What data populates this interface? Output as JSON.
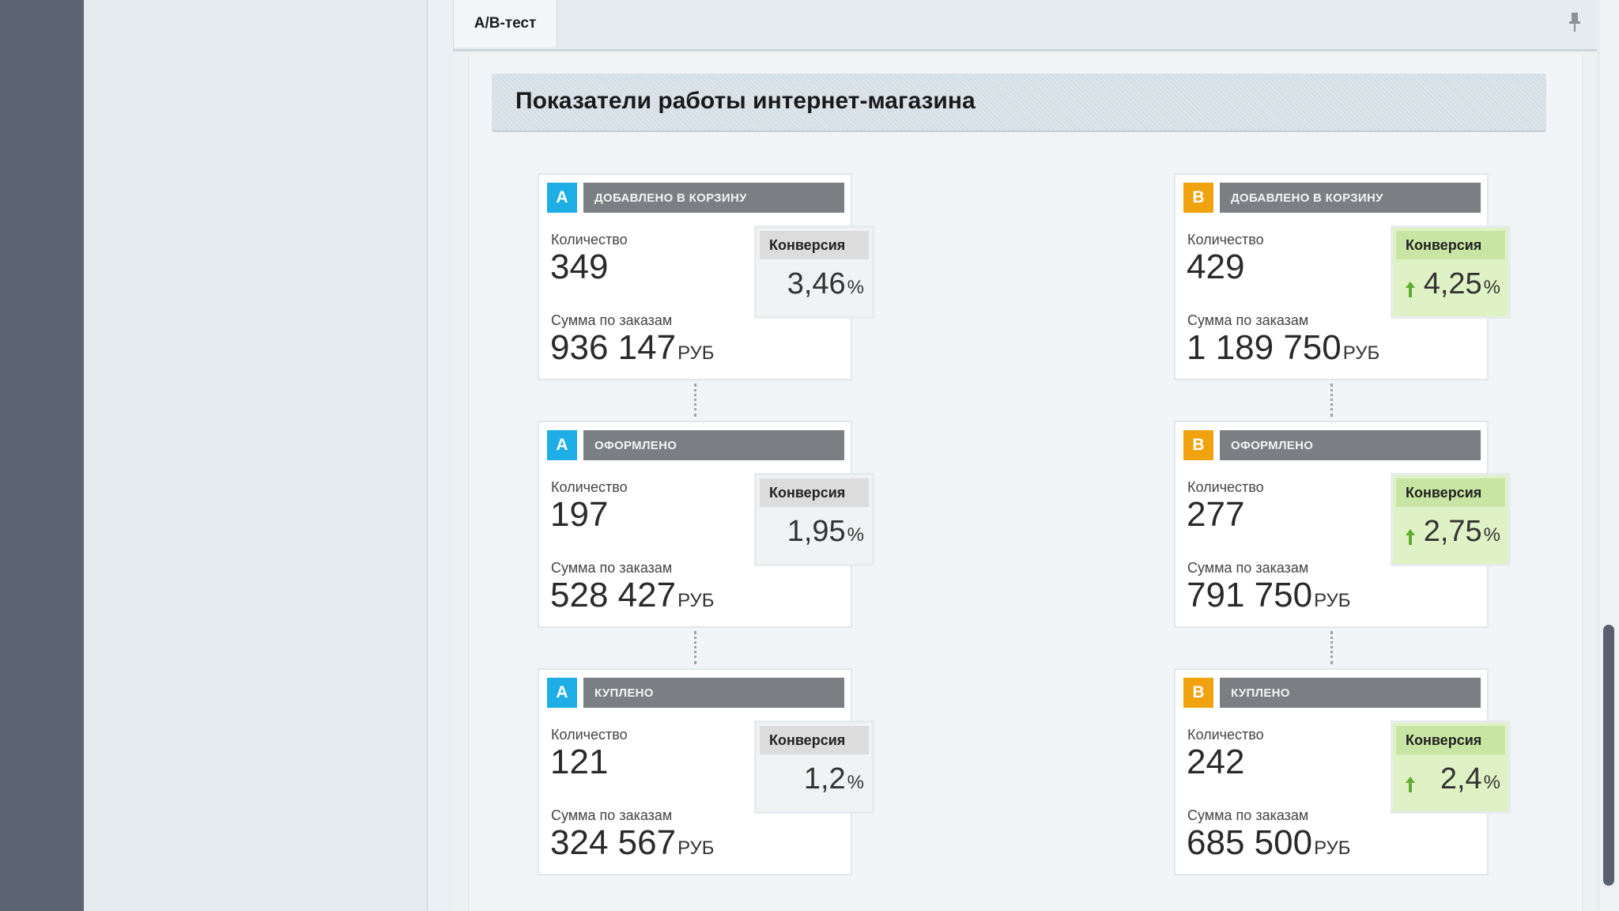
{
  "tab": {
    "label": "A/B-тест"
  },
  "page": {
    "title": "Показатели работы интернет-магазина"
  },
  "labels": {
    "quantity": "Количество",
    "order_sum": "Сумма по заказам",
    "conversion": "Конверсия",
    "currency": "РУБ",
    "percent": "%"
  },
  "variants": [
    {
      "name": "A",
      "color": "#1eaee5",
      "stages": [
        {
          "stage": "ДОБАВЛЕНО В КОРЗИНУ",
          "quantity": "349",
          "sum": "936 147",
          "conversion": "3,46"
        },
        {
          "stage": "ОФОРМЛЕНО",
          "quantity": "197",
          "sum": "528 427",
          "conversion": "1,95"
        },
        {
          "stage": "КУПЛЕНО",
          "quantity": "121",
          "sum": "324 567",
          "conversion": "1,2"
        }
      ]
    },
    {
      "name": "B",
      "color": "#f1a20f",
      "stages": [
        {
          "stage": "ДОБАВЛЕНО В КОРЗИНУ",
          "quantity": "429",
          "sum": "1 189 750",
          "conversion": "4,25",
          "trend": "up"
        },
        {
          "stage": "ОФОРМЛЕНО",
          "quantity": "277",
          "sum": "791 750",
          "conversion": "2,75",
          "trend": "up"
        },
        {
          "stage": "КУПЛЕНО",
          "quantity": "242",
          "sum": "685 500",
          "conversion": "2,4",
          "trend": "up"
        }
      ]
    }
  ]
}
